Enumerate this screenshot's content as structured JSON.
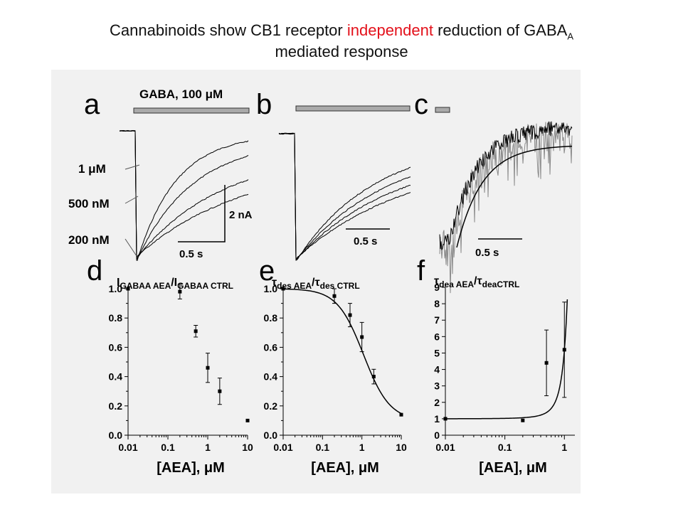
{
  "slide": {
    "title_part1": "Cannabinoids show CB1 receptor ",
    "title_highlight": "independent",
    "title_part2": " reduction of GABA",
    "title_sub": "A",
    "title_line2": "mediated response",
    "highlight_color": "#e3111b"
  },
  "panels": {
    "a": {
      "letter": "a",
      "bar_label_prefix": "GABA, 100 ",
      "bar_label_unit": "μM",
      "concentrations": [
        "1 μM",
        "500 nM",
        "200 nM"
      ],
      "scale_y": "2 nA",
      "scale_x": "0.5 s"
    },
    "b": {
      "letter": "b",
      "scale_x": "0.5 s"
    },
    "c": {
      "letter": "c",
      "scale_x": "0.5 s"
    }
  },
  "chart_data": [
    {
      "panel": "d",
      "type": "scatter",
      "ylabel_main": "I",
      "ylabel_sub1": "GABAA AEA",
      "ylabel_sep": "/I",
      "ylabel_sub2": "GABAA CTRL",
      "xlabel": "[AEA], μM",
      "xscale": "log",
      "xlim": [
        0.01,
        10
      ],
      "ylim": [
        0.0,
        1.0
      ],
      "x_ticks": [
        "0.01",
        "0.1",
        "1",
        "10"
      ],
      "y_ticks": [
        "0.0",
        "0.2",
        "0.4",
        "0.6",
        "0.8",
        "1.0"
      ],
      "points": [
        {
          "x": 0.01,
          "y": 1.0,
          "err": 0
        },
        {
          "x": 0.2,
          "y": 0.98,
          "err": 0.05
        },
        {
          "x": 0.5,
          "y": 0.71,
          "err": 0.04
        },
        {
          "x": 1.0,
          "y": 0.46,
          "err": 0.1
        },
        {
          "x": 2.0,
          "y": 0.3,
          "err": 0.09
        },
        {
          "x": 10.0,
          "y": 0.1,
          "err": 0
        }
      ],
      "fit": {
        "kind": "hill",
        "top": 1.04,
        "bottom": 0.1,
        "ec50": 0.75,
        "n": 1.6
      }
    },
    {
      "panel": "e",
      "type": "scatter",
      "ylabel_main": "τ",
      "ylabel_sub1": "des AEA",
      "ylabel_sep": "/τ",
      "ylabel_sub2": "des CTRL",
      "xlabel": "[AEA], μM",
      "xscale": "log",
      "xlim": [
        0.01,
        10
      ],
      "ylim": [
        0.0,
        1.0
      ],
      "x_ticks": [
        "0.01",
        "0.1",
        "1",
        "10"
      ],
      "y_ticks": [
        "0.0",
        "0.2",
        "0.4",
        "0.6",
        "0.8",
        "1.0"
      ],
      "points": [
        {
          "x": 0.01,
          "y": 1.0,
          "err": 0
        },
        {
          "x": 0.2,
          "y": 0.95,
          "err": 0.05
        },
        {
          "x": 0.5,
          "y": 0.82,
          "err": 0.08
        },
        {
          "x": 1.0,
          "y": 0.67,
          "err": 0.1
        },
        {
          "x": 2.0,
          "y": 0.4,
          "err": 0.05
        },
        {
          "x": 10.0,
          "y": 0.14,
          "err": 0
        }
      ],
      "fit": {
        "kind": "hill",
        "top": 1.0,
        "bottom": 0.1,
        "ec50": 1.1,
        "n": 1.3
      }
    },
    {
      "panel": "f",
      "type": "scatter",
      "ylabel_main": "τ",
      "ylabel_sub1": "dea AEA",
      "ylabel_sep": "/τ",
      "ylabel_sub2": "deaCTRL",
      "xlabel": "[AEA], μM",
      "xscale": "log",
      "xlim": [
        0.01,
        1.5
      ],
      "ylim": [
        0,
        9
      ],
      "x_ticks": [
        "0.01",
        "0.1",
        "1"
      ],
      "y_ticks": [
        "0",
        "1",
        "2",
        "3",
        "4",
        "5",
        "6",
        "7",
        "8",
        "9"
      ],
      "points": [
        {
          "x": 0.01,
          "y": 1.0,
          "err": 0
        },
        {
          "x": 0.2,
          "y": 0.9,
          "err": 0
        },
        {
          "x": 0.5,
          "y": 4.4,
          "err": 2.0
        },
        {
          "x": 1.0,
          "y": 5.2,
          "err": 2.9
        }
      ],
      "fit": {
        "kind": "exp",
        "a": 0.92,
        "b": 4.6
      }
    }
  ]
}
